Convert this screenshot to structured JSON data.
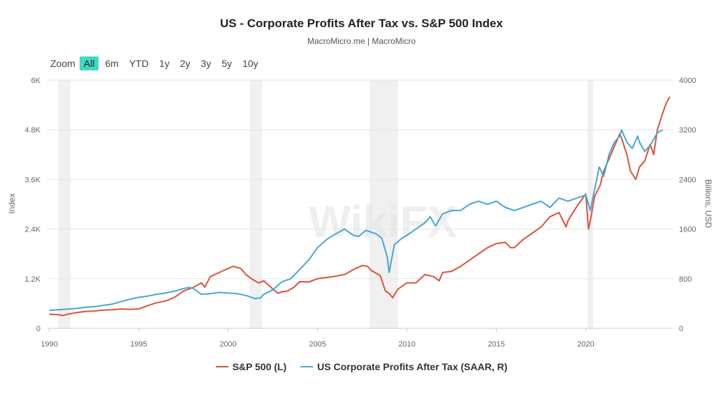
{
  "page": {
    "title": "US - Corporate Profits After Tax vs. S&P 500 Index",
    "subtitle": "MacroMicro.me | MacroMicro"
  },
  "zoom": {
    "label": "Zoom",
    "options": [
      "All",
      "6m",
      "YTD",
      "1y",
      "2y",
      "3y",
      "5y",
      "10y"
    ],
    "selected": "All",
    "active_color": "#3fd9c1"
  },
  "watermark": {
    "text": "WikiFX"
  },
  "chart_data": {
    "type": "line",
    "title": "US - Corporate Profits After Tax vs. S&P 500 Index",
    "subtitle": "MacroMicro.me | MacroMicro",
    "xlabel": "",
    "ylabel_left": "Index",
    "ylabel_right": "Billions, USD",
    "xlim": [
      1989.9,
      2024.9
    ],
    "x_ticks": [
      1990,
      1995,
      2000,
      2005,
      2010,
      2015,
      2020
    ],
    "x_tick_labels": [
      "1990",
      "1995",
      "2000",
      "2005",
      "2010",
      "2015",
      "2020"
    ],
    "ylim_left": [
      0,
      6000
    ],
    "y_ticks_left": [
      0,
      1200,
      2400,
      3600,
      4800,
      6000
    ],
    "y_tick_labels_left": [
      "0",
      "1.2K",
      "2.4K",
      "3.6K",
      "4.8K",
      "6K"
    ],
    "ylim_right": [
      0,
      4000
    ],
    "y_ticks_right": [
      0,
      800,
      1600,
      2400,
      3200,
      4000
    ],
    "y_tick_labels_right": [
      "0",
      "800",
      "1600",
      "2400",
      "3200",
      "4000"
    ],
    "grid": true,
    "legend_position": "bottom",
    "recession_bands": [
      [
        1990.5,
        1991.2
      ],
      [
        2001.2,
        2001.9
      ],
      [
        2007.9,
        2009.5
      ],
      [
        2020.1,
        2020.4
      ]
    ],
    "series": [
      {
        "name": "S&P 500 (L)",
        "axis": "left",
        "color": "#d9533a",
        "x": [
          1990.0,
          1990.5,
          1990.8,
          1991.0,
          1991.5,
          1992.0,
          1992.5,
          1993.0,
          1993.5,
          1994.0,
          1994.5,
          1995.0,
          1995.5,
          1996.0,
          1996.5,
          1997.0,
          1997.5,
          1997.8,
          1998.0,
          1998.5,
          1998.7,
          1999.0,
          1999.5,
          2000.0,
          2000.3,
          2000.7,
          2001.0,
          2001.3,
          2001.7,
          2002.0,
          2002.5,
          2002.8,
          2003.0,
          2003.3,
          2003.7,
          2004.0,
          2004.5,
          2005.0,
          2005.5,
          2006.0,
          2006.5,
          2007.0,
          2007.5,
          2007.8,
          2008.0,
          2008.5,
          2008.8,
          2009.0,
          2009.2,
          2009.5,
          2010.0,
          2010.5,
          2011.0,
          2011.5,
          2011.8,
          2012.0,
          2012.5,
          2013.0,
          2013.5,
          2014.0,
          2014.5,
          2015.0,
          2015.5,
          2015.8,
          2016.0,
          2016.5,
          2017.0,
          2017.5,
          2018.0,
          2018.5,
          2018.9,
          2019.0,
          2019.5,
          2020.0,
          2020.15,
          2020.25,
          2020.5,
          2020.8,
          2021.0,
          2021.5,
          2021.9,
          2022.0,
          2022.3,
          2022.5,
          2022.8,
          2023.0,
          2023.3,
          2023.6,
          2023.8,
          2024.0,
          2024.3,
          2024.5,
          2024.7
        ],
        "values": [
          340,
          330,
          310,
          340,
          380,
          410,
          420,
          440,
          450,
          470,
          460,
          470,
          550,
          620,
          660,
          750,
          900,
          950,
          980,
          1100,
          1000,
          1250,
          1350,
          1450,
          1500,
          1450,
          1300,
          1200,
          1100,
          1150,
          950,
          850,
          880,
          900,
          1000,
          1130,
          1120,
          1200,
          1230,
          1260,
          1300,
          1420,
          1520,
          1500,
          1400,
          1280,
          900,
          850,
          740,
          950,
          1100,
          1100,
          1300,
          1250,
          1150,
          1350,
          1380,
          1500,
          1650,
          1800,
          1950,
          2050,
          2080,
          1950,
          1950,
          2150,
          2300,
          2450,
          2700,
          2800,
          2450,
          2600,
          2950,
          3250,
          2400,
          2600,
          3200,
          3450,
          3800,
          4300,
          4700,
          4600,
          4200,
          3800,
          3600,
          3900,
          4050,
          4450,
          4200,
          4800,
          5200,
          5450,
          5600
        ]
      },
      {
        "name": "US Corporate Profits After Tax (SAAR, R)",
        "axis": "right",
        "color": "#45a8cf",
        "x": [
          1990.0,
          1990.5,
          1991.0,
          1991.5,
          1992.0,
          1992.5,
          1993.0,
          1993.5,
          1994.0,
          1994.5,
          1995.0,
          1995.5,
          1996.0,
          1996.5,
          1997.0,
          1997.5,
          1997.8,
          1998.0,
          1998.5,
          1999.0,
          1999.5,
          2000.0,
          2000.5,
          2001.0,
          2001.5,
          2001.8,
          2002.0,
          2002.5,
          2003.0,
          2003.5,
          2004.0,
          2004.5,
          2005.0,
          2005.5,
          2006.0,
          2006.5,
          2007.0,
          2007.3,
          2007.7,
          2008.0,
          2008.3,
          2008.6,
          2008.9,
          2009.0,
          2009.3,
          2009.7,
          2010.0,
          2010.5,
          2011.0,
          2011.3,
          2011.6,
          2012.0,
          2012.5,
          2013.0,
          2013.5,
          2014.0,
          2014.5,
          2015.0,
          2015.5,
          2016.0,
          2016.5,
          2017.0,
          2017.5,
          2018.0,
          2018.5,
          2019.0,
          2019.5,
          2020.0,
          2020.25,
          2020.5,
          2020.75,
          2021.0,
          2021.3,
          2021.6,
          2021.9,
          2022.0,
          2022.3,
          2022.6,
          2022.9,
          2023.0,
          2023.3,
          2023.6,
          2023.9,
          2024.0,
          2024.3
        ],
        "values": [
          290,
          300,
          310,
          320,
          340,
          350,
          370,
          390,
          430,
          470,
          500,
          520,
          550,
          570,
          600,
          640,
          660,
          650,
          550,
          560,
          580,
          570,
          560,
          530,
          480,
          490,
          550,
          620,
          750,
          800,
          950,
          1100,
          1300,
          1430,
          1520,
          1600,
          1500,
          1480,
          1580,
          1550,
          1520,
          1450,
          1150,
          900,
          1350,
          1450,
          1500,
          1600,
          1700,
          1800,
          1650,
          1850,
          1900,
          1900,
          2000,
          2050,
          2000,
          2050,
          1950,
          1900,
          1950,
          2000,
          2050,
          1950,
          2100,
          2050,
          2100,
          2150,
          1900,
          2250,
          2600,
          2450,
          2800,
          3000,
          3100,
          3200,
          3000,
          2900,
          3100,
          3000,
          2850,
          2950,
          3100,
          3150,
          3200
        ]
      }
    ]
  }
}
